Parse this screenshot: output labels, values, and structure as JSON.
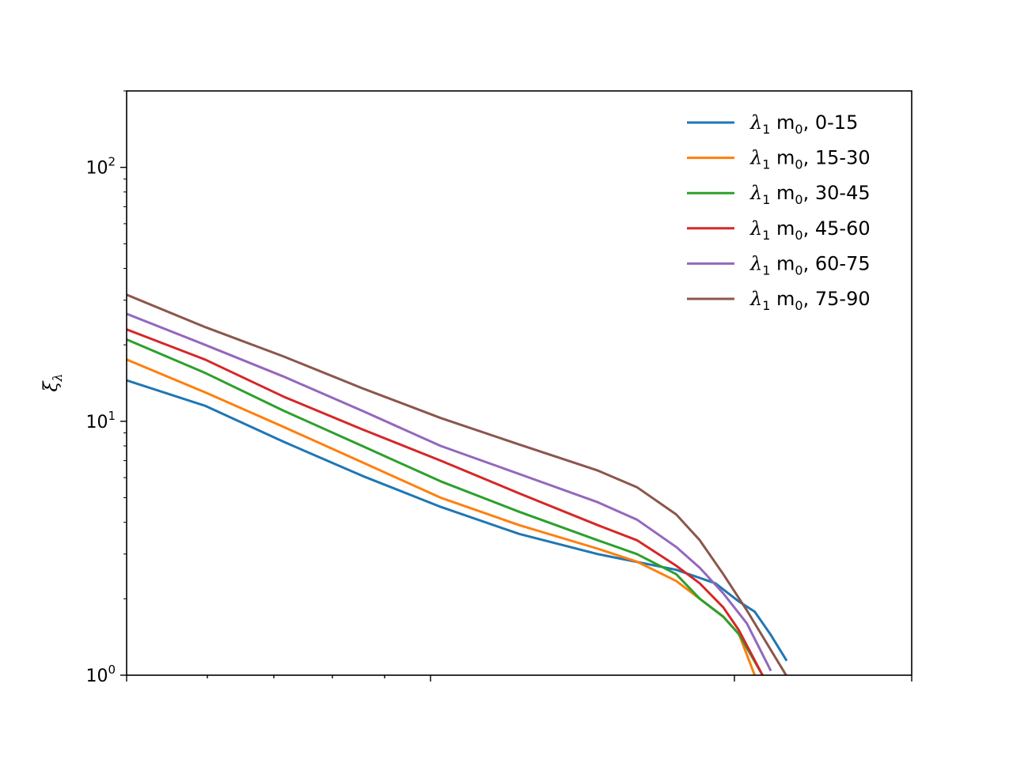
{
  "chart_data": {
    "type": "line",
    "title": "",
    "xlabel": "",
    "ylabel": "ξ",
    "ylabel_sub": "λ",
    "yscale": "log",
    "ylim": [
      1,
      200
    ],
    "xlim": [
      0,
      1
    ],
    "x_tick_labels": [],
    "y_ticks": [
      {
        "value": 1,
        "base": "10",
        "exp": "0"
      },
      {
        "value": 10,
        "base": "10",
        "exp": "1"
      },
      {
        "value": 100,
        "base": "10",
        "exp": "2"
      }
    ],
    "grid": false,
    "legend_position": "top-right",
    "series": [
      {
        "name": "λ₁ m₀, 0-15",
        "name_parts": {
          "symbol": "λ",
          "symbol_sub": "1",
          "text": "m",
          "text_sub": "0",
          "range": "0-15"
        },
        "color": "#1f77b4",
        "x": [
          0.0,
          0.1,
          0.2,
          0.3,
          0.4,
          0.5,
          0.6,
          0.7,
          0.75,
          0.78,
          0.8,
          0.82,
          0.84
        ],
        "y": [
          14.5,
          11.5,
          8.3,
          6.1,
          4.6,
          3.6,
          3.0,
          2.6,
          2.3,
          1.95,
          1.78,
          1.45,
          1.15
        ]
      },
      {
        "name": "λ₁ m₀, 15-30",
        "name_parts": {
          "symbol": "λ",
          "symbol_sub": "1",
          "text": "m",
          "text_sub": "0",
          "range": "15-30"
        },
        "color": "#ff7f0e",
        "x": [
          0.0,
          0.1,
          0.2,
          0.3,
          0.4,
          0.5,
          0.6,
          0.65,
          0.7,
          0.73,
          0.76,
          0.78,
          0.8
        ],
        "y": [
          17.5,
          13.0,
          9.5,
          6.9,
          5.0,
          3.9,
          3.15,
          2.8,
          2.35,
          2.0,
          1.7,
          1.45,
          1.0
        ]
      },
      {
        "name": "λ₁ m₀, 30-45",
        "name_parts": {
          "symbol": "λ",
          "symbol_sub": "1",
          "text": "m",
          "text_sub": "0",
          "range": "30-45"
        },
        "color": "#2ca02c",
        "x": [
          0.0,
          0.1,
          0.2,
          0.3,
          0.4,
          0.5,
          0.6,
          0.65,
          0.7,
          0.73,
          0.76,
          0.78,
          0.81
        ],
        "y": [
          21.0,
          15.5,
          11.0,
          8.0,
          5.8,
          4.4,
          3.4,
          3.0,
          2.5,
          2.0,
          1.7,
          1.45,
          1.0
        ]
      },
      {
        "name": "λ₁ m₀, 45-60",
        "name_parts": {
          "symbol": "λ",
          "symbol_sub": "1",
          "text": "m",
          "text_sub": "0",
          "range": "45-60"
        },
        "color": "#d62728",
        "x": [
          0.0,
          0.1,
          0.2,
          0.3,
          0.4,
          0.5,
          0.6,
          0.65,
          0.7,
          0.73,
          0.76,
          0.78,
          0.81
        ],
        "y": [
          23.0,
          17.5,
          12.5,
          9.3,
          7.0,
          5.2,
          3.9,
          3.4,
          2.7,
          2.3,
          1.85,
          1.5,
          1.0
        ]
      },
      {
        "name": "λ₁ m₀, 60-75",
        "name_parts": {
          "symbol": "λ",
          "symbol_sub": "1",
          "text": "m",
          "text_sub": "0",
          "range": "60-75"
        },
        "color": "#9467bd",
        "x": [
          0.0,
          0.1,
          0.2,
          0.3,
          0.4,
          0.5,
          0.6,
          0.65,
          0.7,
          0.73,
          0.76,
          0.79,
          0.82
        ],
        "y": [
          26.5,
          20.0,
          15.0,
          11.0,
          8.0,
          6.2,
          4.8,
          4.1,
          3.2,
          2.65,
          2.1,
          1.6,
          1.05
        ]
      },
      {
        "name": "λ₁ m₀, 75-90",
        "name_parts": {
          "symbol": "λ",
          "symbol_sub": "1",
          "text": "m",
          "text_sub": "0",
          "range": "75-90"
        },
        "color": "#8c564b",
        "x": [
          0.0,
          0.1,
          0.2,
          0.3,
          0.4,
          0.5,
          0.6,
          0.65,
          0.7,
          0.73,
          0.76,
          0.79,
          0.84
        ],
        "y": [
          31.5,
          23.5,
          18.0,
          13.5,
          10.3,
          8.1,
          6.4,
          5.5,
          4.3,
          3.4,
          2.5,
          1.8,
          1.0
        ]
      }
    ]
  }
}
